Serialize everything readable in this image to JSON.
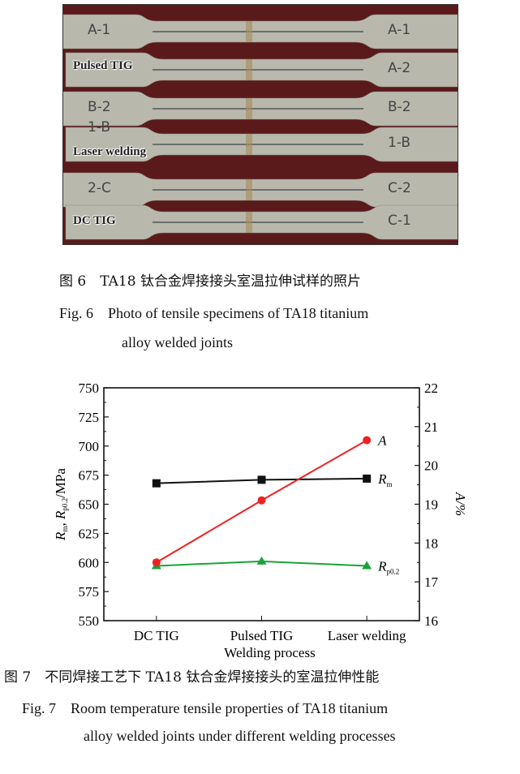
{
  "figure6": {
    "photo_labels": [
      "Pulsed TIG",
      "Laser welding",
      "DC TIG"
    ],
    "specimen_marks": [
      [
        "A-1",
        "A-1"
      ],
      [
        "",
        "A-2"
      ],
      [
        "B-2",
        "B-2"
      ],
      [
        "1-B",
        "1-B"
      ],
      [
        "2-C",
        "C-2"
      ],
      [
        "",
        "C-1"
      ]
    ],
    "caption_cn": "图 6　TA18 钛合金焊接接头室温拉伸试样的照片",
    "caption_en_1": "Fig. 6　Photo of tensile specimens of TA18 titanium",
    "caption_en_2": "alloy welded joints"
  },
  "figure7": {
    "caption_cn": "图 7　不同焊接工艺下 TA18 钛合金焊接接头的室温拉伸性能",
    "caption_en_1": "Fig. 7　Room temperature tensile properties of TA18 titanium",
    "caption_en_2": "alloy welded joints under different welding processes"
  },
  "chart_data": {
    "type": "line",
    "categories": [
      "DC TIG",
      "Pulsed TIG",
      "Laser welding"
    ],
    "xlabel": "Welding process",
    "ylabel_left": "Rm, Rp0.2/MPa",
    "ylabel_right": "A/%",
    "ylim_left": [
      550,
      750
    ],
    "yticks_left": [
      550,
      575,
      600,
      625,
      650,
      675,
      700,
      725,
      750
    ],
    "ylim_right": [
      16,
      22
    ],
    "yticks_right": [
      16,
      17,
      18,
      19,
      20,
      21,
      22
    ],
    "grid": false,
    "series": [
      {
        "name": "Rm",
        "axis": "left",
        "marker": "square",
        "color": "#111111",
        "values": [
          668,
          671,
          672
        ]
      },
      {
        "name": "Rp0.2",
        "axis": "left",
        "marker": "triangle",
        "color": "#1aa33a",
        "values": [
          597,
          601,
          597
        ]
      },
      {
        "name": "A",
        "axis": "right",
        "marker": "circle",
        "color": "#ee2222",
        "values": [
          17.5,
          19.1,
          20.65
        ]
      }
    ]
  }
}
